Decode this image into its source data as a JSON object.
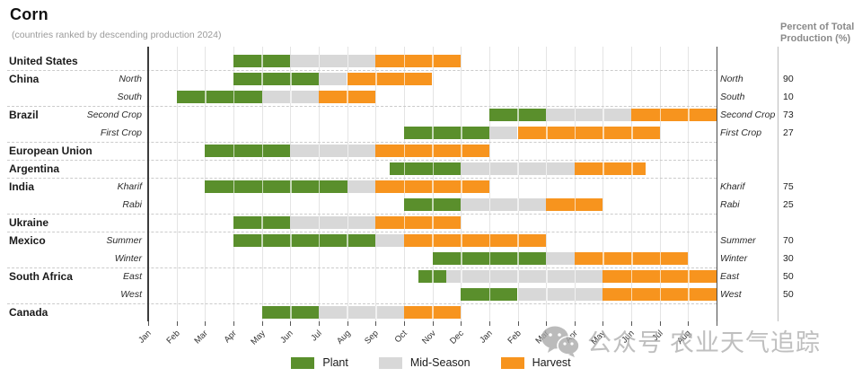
{
  "title": "Corn",
  "subtitle": "(countries ranked by descending production 2024)",
  "right_header": {
    "line1": "Percent of Total",
    "line2": "Production (%)"
  },
  "legend": {
    "items": [
      {
        "label": "Plant",
        "color": "#5a8f2c"
      },
      {
        "label": "Mid-Season",
        "color": "#d8d8d8"
      },
      {
        "label": "Harvest",
        "color": "#f7941e"
      }
    ]
  },
  "watermark": {
    "icon": "wechat-icon",
    "text1": "公众号",
    "text2": "农业天气追踪"
  },
  "colors": {
    "plant": "#5a8f2c",
    "mid": "#d8d8d8",
    "harvest": "#f7941e",
    "axis": "#3c3c3c",
    "grid": "#e4e4e4",
    "separator": "#cbcbcb"
  },
  "chart_data": {
    "type": "bar",
    "subtype": "crop-calendar-gantt",
    "time_unit": "half-month",
    "x_axis_note": "20 months, Jan of year 1 through Aug of year 2; units below are half-months from Jan 1 (0..40)",
    "x_months": [
      "Jan",
      "Feb",
      "Mar",
      "Apr",
      "May",
      "Jun",
      "Jul",
      "Aug",
      "Sep",
      "Oct",
      "Nov",
      "Dec",
      "Jan",
      "Feb",
      "Mar",
      "Apr",
      "May",
      "Jun",
      "Jul",
      "Aug"
    ],
    "series_legend": [
      "Plant",
      "Mid-Season",
      "Harvest"
    ],
    "rows": [
      {
        "country": "United States",
        "season": "",
        "percent": "",
        "plant": [
          6,
          10
        ],
        "mid": [
          10,
          16
        ],
        "harvest": [
          16,
          22
        ]
      },
      {
        "country": "China",
        "season": "North",
        "percent": "90",
        "plant": [
          6,
          12
        ],
        "mid": [
          12,
          14
        ],
        "harvest": [
          14,
          20
        ]
      },
      {
        "country": "",
        "season": "South",
        "percent": "10",
        "plant": [
          2,
          8
        ],
        "mid": [
          8,
          12
        ],
        "harvest": [
          12,
          16
        ]
      },
      {
        "country": "Brazil",
        "season": "Second Crop",
        "percent": "73",
        "plant": [
          24,
          28
        ],
        "mid": [
          28,
          34
        ],
        "harvest": [
          34,
          40
        ]
      },
      {
        "country": "",
        "season": "First Crop",
        "percent": "27",
        "plant": [
          18,
          24
        ],
        "mid": [
          24,
          26
        ],
        "harvest": [
          26,
          36
        ]
      },
      {
        "country": "European Union",
        "season": "",
        "percent": "",
        "plant": [
          4,
          10
        ],
        "mid": [
          10,
          16
        ],
        "harvest": [
          16,
          24
        ]
      },
      {
        "country": "Argentina",
        "season": "",
        "percent": "",
        "plant": [
          17,
          22
        ],
        "mid": [
          22,
          30
        ],
        "harvest": [
          30,
          35
        ]
      },
      {
        "country": "India",
        "season": "Kharif",
        "percent": "75",
        "plant": [
          4,
          14
        ],
        "mid": [
          14,
          16
        ],
        "harvest": [
          16,
          24
        ]
      },
      {
        "country": "",
        "season": "Rabi",
        "percent": "25",
        "plant": [
          18,
          22
        ],
        "mid": [
          22,
          28
        ],
        "harvest": [
          28,
          32
        ]
      },
      {
        "country": "Ukraine",
        "season": "",
        "percent": "",
        "plant": [
          6,
          10
        ],
        "mid": [
          10,
          16
        ],
        "harvest": [
          16,
          22
        ]
      },
      {
        "country": "Mexico",
        "season": "Summer",
        "percent": "70",
        "plant": [
          6,
          16
        ],
        "mid": [
          16,
          18
        ],
        "harvest": [
          18,
          28
        ]
      },
      {
        "country": "",
        "season": "Winter",
        "percent": "30",
        "plant": [
          20,
          28
        ],
        "mid": [
          28,
          30
        ],
        "harvest": [
          30,
          38
        ]
      },
      {
        "country": "South Africa",
        "season": "East",
        "percent": "50",
        "plant": [
          19,
          21
        ],
        "mid": [
          21,
          32
        ],
        "harvest": [
          32,
          40
        ]
      },
      {
        "country": "",
        "season": "West",
        "percent": "50",
        "plant": [
          22,
          26
        ],
        "mid": [
          26,
          32
        ],
        "harvest": [
          32,
          40
        ]
      },
      {
        "country": "Canada",
        "season": "",
        "percent": "",
        "plant": [
          8,
          12
        ],
        "mid": [
          12,
          18
        ],
        "harvest": [
          18,
          22
        ]
      }
    ],
    "group_separators_after_rows": [
      0,
      2,
      4,
      5,
      6,
      8,
      9,
      11,
      13
    ]
  }
}
